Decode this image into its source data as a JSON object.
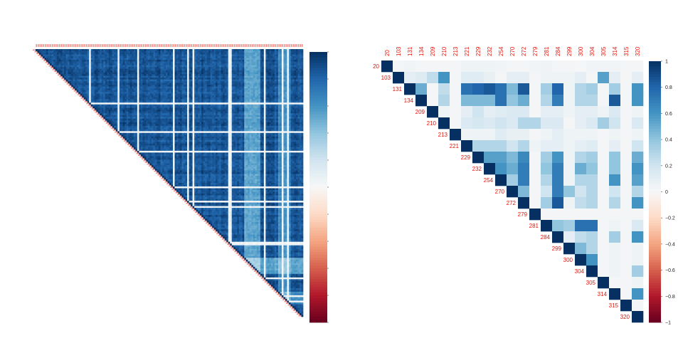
{
  "chart_data": [
    {
      "type": "heatmap",
      "layout": "upper-triangle",
      "labels_visible": false,
      "n_vars": 150,
      "scale_range": [
        -1,
        1
      ],
      "colors": {
        "neg": "#67001f",
        "zero": "#f7f7f7",
        "pos": "#053061"
      },
      "legend_placement": "right"
    },
    {
      "type": "heatmap",
      "layout": "upper-triangle",
      "labels": [
        "20",
        "103",
        "131",
        "134",
        "209",
        "210",
        "213",
        "221",
        "229",
        "232",
        "254",
        "270",
        "272",
        "279",
        "281",
        "284",
        "299",
        "300",
        "304",
        "305",
        "314",
        "315",
        "320"
      ],
      "upper_values": [
        [
          1,
          0.02,
          0.03,
          0.02,
          0.02,
          0.02,
          0.02,
          0.05,
          0.05,
          0.05,
          0.03,
          0.02,
          0.02,
          0.03,
          0.04,
          0.02,
          0.02,
          0.01,
          0.03,
          0.03,
          0.03,
          0.02,
          0.02
        ],
        [
          1,
          0.1,
          0.13,
          0.25,
          0.6,
          0.02,
          0.12,
          0.12,
          0.08,
          0.02,
          0.1,
          0.1,
          0.02,
          0.05,
          0.05,
          0.05,
          0.1,
          0.02,
          0.55,
          0.1,
          0.02,
          0.1
        ],
        [
          1,
          0.5,
          0.02,
          0.25,
          0.02,
          0.75,
          0.8,
          0.85,
          0.75,
          0.45,
          0.85,
          0.02,
          0.35,
          0.8,
          0.05,
          0.3,
          0.35,
          0.02,
          0.35,
          0.02,
          0.6
        ],
        [
          1,
          0.02,
          0.3,
          0.02,
          0.45,
          0.45,
          0.45,
          0.75,
          0.4,
          0.5,
          0.02,
          0.3,
          0.7,
          0.05,
          0.3,
          0.3,
          0.02,
          0.85,
          0.02,
          0.6
        ],
        [
          1,
          0.05,
          0.02,
          0.1,
          0.2,
          0.1,
          0.12,
          0.15,
          0.15,
          0.02,
          0.1,
          0.1,
          0.05,
          0.1,
          0.1,
          0.05,
          0.15,
          0.02,
          0.05
        ],
        [
          1,
          0.02,
          0.15,
          0.18,
          0.15,
          0.2,
          0.15,
          0.3,
          0.3,
          0.15,
          0.15,
          0.02,
          0.1,
          0.15,
          0.35,
          0.2,
          0.02,
          0.15
        ],
        [
          1,
          0.05,
          0.05,
          0.05,
          0.12,
          0.08,
          0.08,
          0.02,
          0.05,
          0.1,
          0.05,
          0.05,
          0.05,
          0.02,
          0.05,
          0.02,
          0.05
        ],
        [
          1,
          0.3,
          0.3,
          0.3,
          0.2,
          0.3,
          0.05,
          0.1,
          0.1,
          0.05,
          0.1,
          0.12,
          0.02,
          0.1,
          0.02,
          0.2
        ],
        [
          1,
          0.55,
          0.55,
          0.45,
          0.65,
          0.02,
          0.35,
          0.6,
          0.05,
          0.3,
          0.35,
          0.02,
          0.4,
          0.02,
          0.5
        ],
        [
          1,
          0.6,
          0.5,
          0.7,
          0.02,
          0.4,
          0.7,
          0.05,
          0.5,
          0.4,
          0.02,
          0.4,
          0.02,
          0.6
        ],
        [
          1,
          0.35,
          0.7,
          0.02,
          0.3,
          0.7,
          0.05,
          0.3,
          0.3,
          0.02,
          0.6,
          0.02,
          0.55
        ],
        [
          1,
          0.45,
          0.02,
          0.2,
          0.7,
          0.4,
          0.2,
          0.3,
          0.02,
          0.2,
          0.02,
          0.3
        ],
        [
          1,
          0.02,
          0.35,
          0.85,
          0.05,
          0.25,
          0.3,
          0.02,
          0.3,
          0.02,
          0.6
        ],
        [
          1,
          0.02,
          0.02,
          0.02,
          0.02,
          0.02,
          0.02,
          0.02,
          0.02,
          0.02
        ],
        [
          1,
          0.4,
          0.35,
          0.75,
          0.75,
          0.02,
          0.05,
          0.02,
          0.15
        ],
        [
          1,
          0.1,
          0.25,
          0.3,
          0.02,
          0.35,
          0.02,
          0.6
        ],
        [
          1,
          0.45,
          0.3,
          0.02,
          0.05,
          0.02,
          0.05
        ],
        [
          1,
          0.6,
          0.02,
          0.05,
          0.02,
          0.05
        ],
        [
          1,
          0.02,
          0.05,
          0.02,
          0.35
        ],
        [
          1,
          0.02,
          0.02,
          0.05
        ],
        [
          1,
          0.02,
          0.6
        ],
        [
          1,
          0.02
        ],
        [
          1
        ]
      ],
      "colorbar": {
        "ticks": [
          1,
          0.8,
          0.6,
          0.4,
          0.2,
          0,
          -0.2,
          -0.4,
          -0.6,
          -0.8,
          -1
        ],
        "tick_labels": [
          "1",
          "0.8",
          "0.6",
          "0.4",
          "0.2",
          "0",
          "−0.2",
          "−0.4",
          "−0.6",
          "−0.8",
          "−1"
        ]
      },
      "scale_range": [
        -1,
        1
      ],
      "colors": {
        "neg": "#67001f",
        "zero": "#f7f7f7",
        "pos": "#053061",
        "label": "#e8140c"
      },
      "legend_placement": "right"
    }
  ]
}
